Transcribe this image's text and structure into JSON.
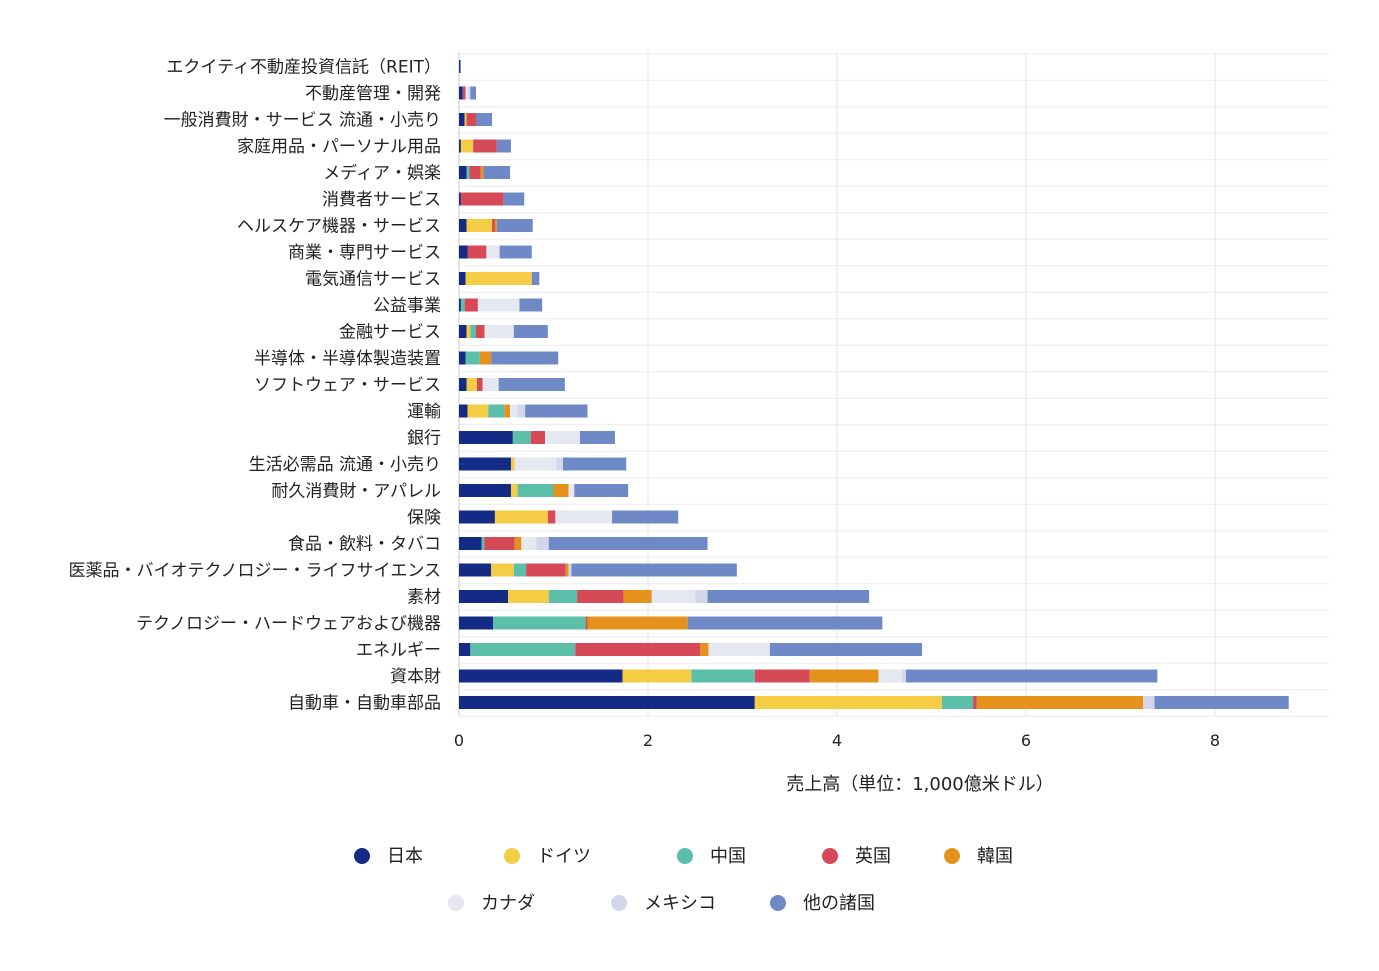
{
  "chart_data": {
    "type": "bar",
    "orientation": "horizontal",
    "stacked": true,
    "title": "",
    "xlabel": "売上高（単位：1,000億米ドル）",
    "ylabel": "",
    "xlim": [
      0,
      9.2
    ],
    "xticks": [
      0,
      2,
      4,
      6,
      8
    ],
    "grid": true,
    "legend_position": "bottom",
    "categories": [
      "エクイティ不動産投資信託（REIT）",
      "不動産管理・開発",
      "一般消費財・サービス 流通・小売り",
      "家庭用品・パーソナル用品",
      "メディア・娯楽",
      "消費者サービス",
      "ヘルスケア機器・サービス",
      "商業・専門サービス",
      "電気通信サービス",
      "公益事業",
      "金融サービス",
      "半導体・半導体製造装置",
      "ソフトウェア・サービス",
      "運輸",
      "銀行",
      "生活必需品 流通・小売り",
      "耐久消費財・アパレル",
      "保険",
      "食品・飲料・タバコ",
      "医薬品・バイオテクノロジー・ライフサイエンス",
      "素材",
      "テクノロジー・ハードウェアおよび機器",
      "エネルギー",
      "資本財",
      "自動車・自動車部品"
    ],
    "series": [
      {
        "name": "日本",
        "color": "#142b86",
        "values": [
          0.01,
          0.04,
          0.06,
          0.02,
          0.08,
          0.02,
          0.08,
          0.09,
          0.07,
          0.02,
          0.08,
          0.07,
          0.08,
          0.09,
          0.57,
          0.55,
          0.55,
          0.38,
          0.24,
          0.34,
          0.52,
          0.36,
          0.12,
          1.73,
          3.13
        ]
      },
      {
        "name": "ドイツ",
        "color": "#f5cd45",
        "values": [
          0.0,
          0.0,
          0.02,
          0.13,
          0.0,
          0.0,
          0.27,
          0.0,
          0.7,
          0.0,
          0.04,
          0.0,
          0.11,
          0.22,
          0.0,
          0.04,
          0.07,
          0.56,
          0.0,
          0.24,
          0.43,
          0.0,
          0.0,
          0.73,
          1.98
        ]
      },
      {
        "name": "中国",
        "color": "#5bbfa9",
        "values": [
          0.0,
          0.0,
          0.0,
          0.0,
          0.03,
          0.0,
          0.0,
          0.0,
          0.0,
          0.04,
          0.06,
          0.15,
          0.0,
          0.17,
          0.19,
          0.0,
          0.38,
          0.0,
          0.03,
          0.13,
          0.3,
          0.98,
          1.11,
          0.67,
          0.33
        ]
      },
      {
        "name": "英国",
        "color": "#d64a57",
        "values": [
          0.0,
          0.03,
          0.1,
          0.25,
          0.12,
          0.45,
          0.03,
          0.2,
          0.0,
          0.14,
          0.09,
          0.0,
          0.06,
          0.0,
          0.15,
          0.0,
          0.0,
          0.08,
          0.32,
          0.42,
          0.49,
          0.02,
          1.32,
          0.58,
          0.04
        ]
      },
      {
        "name": "韓国",
        "color": "#e5921d",
        "values": [
          0.0,
          0.0,
          0.0,
          0.0,
          0.03,
          0.0,
          0.02,
          0.0,
          0.0,
          0.0,
          0.0,
          0.12,
          0.0,
          0.06,
          0.0,
          0.0,
          0.16,
          0.0,
          0.07,
          0.03,
          0.3,
          1.06,
          0.09,
          0.73,
          1.76
        ]
      },
      {
        "name": "カナダ",
        "color": "#e5e8f1",
        "values": [
          0.0,
          0.03,
          0.0,
          0.0,
          0.0,
          0.0,
          0.0,
          0.14,
          0.0,
          0.44,
          0.31,
          0.0,
          0.17,
          0.08,
          0.37,
          0.44,
          0.06,
          0.6,
          0.16,
          0.0,
          0.46,
          0.0,
          0.65,
          0.25,
          0.0
        ]
      },
      {
        "name": "メキシコ",
        "color": "#d2d8e9",
        "values": [
          0.0,
          0.02,
          0.0,
          0.0,
          0.0,
          0.0,
          0.0,
          0.0,
          0.0,
          0.0,
          0.0,
          0.0,
          0.0,
          0.08,
          0.0,
          0.07,
          0.0,
          0.0,
          0.13,
          0.03,
          0.13,
          0.0,
          0.0,
          0.04,
          0.12
        ]
      },
      {
        "name": "他の諸国",
        "color": "#6f88c6",
        "values": [
          0.01,
          0.06,
          0.17,
          0.15,
          0.28,
          0.22,
          0.38,
          0.34,
          0.08,
          0.24,
          0.36,
          0.71,
          0.7,
          0.66,
          0.37,
          0.67,
          0.57,
          0.7,
          1.68,
          1.75,
          1.71,
          2.06,
          1.61,
          2.66,
          1.42
        ]
      }
    ]
  }
}
